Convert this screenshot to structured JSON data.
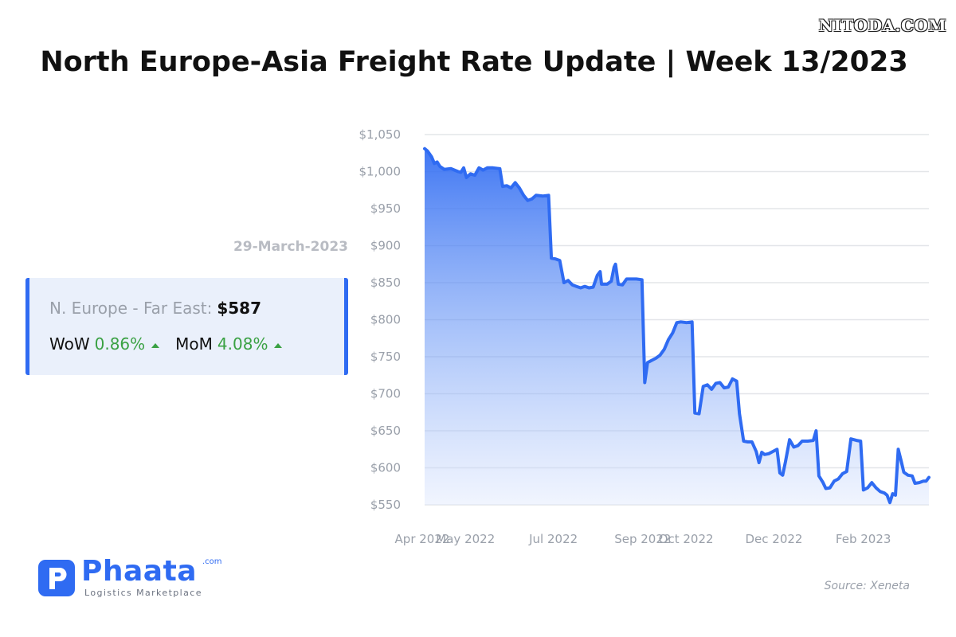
{
  "watermark": "NITODA.COM",
  "title": "North Europe-Asia Freight Rate Update | Week 13/2023",
  "date_label": "29-March-2023",
  "summary": {
    "route_label": "N. Europe - Far East:",
    "route_value": "$587",
    "wow_label": "WoW",
    "wow_value": "0.86%",
    "mom_label": "MoM",
    "mom_value": "4.08%"
  },
  "logo": {
    "name": "Phaata",
    "suffix": ".com",
    "tagline": "Logistics Marketplace"
  },
  "source": "Source: Xeneta",
  "colors": {
    "line": "#2f6bf2",
    "accent": "#2f6bf2",
    "positive": "#3aa143"
  },
  "chart_data": {
    "type": "area",
    "title": "",
    "xlabel": "",
    "ylabel": "",
    "ylim": [
      550,
      1050
    ],
    "y_ticks": [
      550,
      600,
      650,
      700,
      750,
      800,
      850,
      900,
      950,
      1000,
      1050
    ],
    "y_tick_labels": [
      "$550",
      "$600",
      "$650",
      "$700",
      "$750",
      "$800",
      "$850",
      "$900",
      "$950",
      "$1,000",
      "$1,050"
    ],
    "x_ticks": [
      "2022-04-01",
      "2022-05-01",
      "2022-07-01",
      "2022-09-01",
      "2022-10-01",
      "2022-12-01",
      "2023-02-01"
    ],
    "x_tick_labels": [
      "Apr 2022",
      "May 2022",
      "Jul 2022",
      "Sep 2022",
      "Oct 2022",
      "Dec 2022",
      "Feb 2023"
    ],
    "x_range": [
      "2022-04-01",
      "2023-03-29"
    ],
    "grid": true,
    "series": [
      {
        "points": [
          [
            "2022-04-01",
            1031
          ],
          [
            "2022-04-03",
            1028
          ],
          [
            "2022-04-06",
            1020
          ],
          [
            "2022-04-08",
            1011
          ],
          [
            "2022-04-10",
            1013
          ],
          [
            "2022-04-12",
            1007
          ],
          [
            "2022-04-15",
            1003
          ],
          [
            "2022-04-20",
            1004
          ],
          [
            "2022-04-25",
            1000
          ],
          [
            "2022-04-27",
            999
          ],
          [
            "2022-04-29",
            1005
          ],
          [
            "2022-05-01",
            992
          ],
          [
            "2022-05-04",
            997
          ],
          [
            "2022-05-07",
            995
          ],
          [
            "2022-05-10",
            1005
          ],
          [
            "2022-05-13",
            1002
          ],
          [
            "2022-05-16",
            1005
          ],
          [
            "2022-05-20",
            1005
          ],
          [
            "2022-05-25",
            1004
          ],
          [
            "2022-05-27",
            980
          ],
          [
            "2022-05-30",
            981
          ],
          [
            "2022-06-02",
            978
          ],
          [
            "2022-06-05",
            985
          ],
          [
            "2022-06-08",
            978
          ],
          [
            "2022-06-11",
            968
          ],
          [
            "2022-06-14",
            961
          ],
          [
            "2022-06-17",
            963
          ],
          [
            "2022-06-20",
            968
          ],
          [
            "2022-06-25",
            967
          ],
          [
            "2022-06-29",
            968
          ],
          [
            "2022-07-01",
            883
          ],
          [
            "2022-07-04",
            882
          ],
          [
            "2022-07-07",
            880
          ],
          [
            "2022-07-10",
            850
          ],
          [
            "2022-07-13",
            853
          ],
          [
            "2022-07-16",
            847
          ],
          [
            "2022-07-19",
            845
          ],
          [
            "2022-07-22",
            843
          ],
          [
            "2022-07-25",
            845
          ],
          [
            "2022-07-28",
            843
          ],
          [
            "2022-07-31",
            844
          ],
          [
            "2022-08-03",
            860
          ],
          [
            "2022-08-05",
            865
          ],
          [
            "2022-08-06",
            848
          ],
          [
            "2022-08-10",
            848
          ],
          [
            "2022-08-13",
            852
          ],
          [
            "2022-08-15",
            871
          ],
          [
            "2022-08-16",
            875
          ],
          [
            "2022-08-18",
            848
          ],
          [
            "2022-08-21",
            847
          ],
          [
            "2022-08-24",
            855
          ],
          [
            "2022-08-28",
            855
          ],
          [
            "2022-08-31",
            855
          ],
          [
            "2022-09-04",
            854
          ],
          [
            "2022-09-06",
            715
          ],
          [
            "2022-09-08",
            742
          ],
          [
            "2022-09-11",
            745
          ],
          [
            "2022-09-14",
            748
          ],
          [
            "2022-09-17",
            752
          ],
          [
            "2022-09-20",
            760
          ],
          [
            "2022-09-23",
            773
          ],
          [
            "2022-09-26",
            782
          ],
          [
            "2022-09-29",
            796
          ],
          [
            "2022-10-02",
            797
          ],
          [
            "2022-10-06",
            796
          ],
          [
            "2022-10-10",
            797
          ],
          [
            "2022-10-12",
            674
          ],
          [
            "2022-10-15",
            673
          ],
          [
            "2022-10-18",
            710
          ],
          [
            "2022-10-21",
            712
          ],
          [
            "2022-10-24",
            706
          ],
          [
            "2022-10-27",
            714
          ],
          [
            "2022-10-30",
            715
          ],
          [
            "2022-11-02",
            708
          ],
          [
            "2022-11-05",
            709
          ],
          [
            "2022-11-08",
            720
          ],
          [
            "2022-11-11",
            717
          ],
          [
            "2022-11-13",
            673
          ],
          [
            "2022-11-16",
            636
          ],
          [
            "2022-11-19",
            635
          ],
          [
            "2022-11-22",
            635
          ],
          [
            "2022-11-25",
            622
          ],
          [
            "2022-11-27",
            607
          ],
          [
            "2022-11-29",
            621
          ],
          [
            "2022-12-01",
            618
          ],
          [
            "2022-12-04",
            619
          ],
          [
            "2022-12-07",
            622
          ],
          [
            "2022-12-10",
            625
          ],
          [
            "2022-12-12",
            593
          ],
          [
            "2022-12-14",
            590
          ],
          [
            "2022-12-16",
            608
          ],
          [
            "2022-12-19",
            638
          ],
          [
            "2022-12-22",
            628
          ],
          [
            "2022-12-25",
            630
          ],
          [
            "2022-12-28",
            636
          ],
          [
            "2023-01-01",
            636
          ],
          [
            "2023-01-05",
            637
          ],
          [
            "2023-01-07",
            650
          ],
          [
            "2023-01-09",
            589
          ],
          [
            "2023-01-12",
            580
          ],
          [
            "2023-01-14",
            572
          ],
          [
            "2023-01-17",
            573
          ],
          [
            "2023-01-20",
            582
          ],
          [
            "2023-01-23",
            585
          ],
          [
            "2023-01-26",
            592
          ],
          [
            "2023-01-29",
            595
          ],
          [
            "2023-02-01",
            639
          ],
          [
            "2023-02-05",
            637
          ],
          [
            "2023-02-08",
            636
          ],
          [
            "2023-02-10",
            570
          ],
          [
            "2023-02-13",
            573
          ],
          [
            "2023-02-16",
            580
          ],
          [
            "2023-02-19",
            573
          ],
          [
            "2023-02-22",
            568
          ],
          [
            "2023-02-25",
            566
          ],
          [
            "2023-02-27",
            563
          ],
          [
            "2023-03-01",
            553
          ],
          [
            "2023-03-03",
            565
          ],
          [
            "2023-03-05",
            563
          ],
          [
            "2023-03-07",
            625
          ],
          [
            "2023-03-09",
            610
          ],
          [
            "2023-03-11",
            594
          ],
          [
            "2023-03-14",
            590
          ],
          [
            "2023-03-17",
            589
          ],
          [
            "2023-03-19",
            579
          ],
          [
            "2023-03-22",
            580
          ],
          [
            "2023-03-25",
            582
          ],
          [
            "2023-03-27",
            582
          ],
          [
            "2023-03-29",
            587
          ]
        ]
      }
    ]
  }
}
